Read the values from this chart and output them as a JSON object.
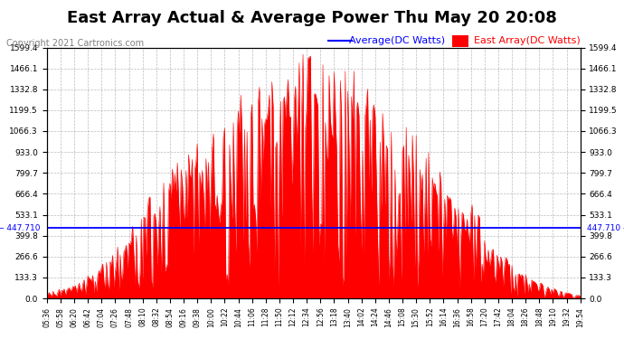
{
  "title": "East Array Actual & Average Power Thu May 20 20:08",
  "copyright": "Copyright 2021 Cartronics.com",
  "legend_avg": "Average(DC Watts)",
  "legend_east": "East Array(DC Watts)",
  "avg_value": 447.71,
  "ymax": 1599.4,
  "ymin": 0.0,
  "yticks": [
    0.0,
    133.3,
    266.6,
    399.8,
    533.1,
    666.4,
    799.7,
    933.0,
    1066.3,
    1199.5,
    1332.8,
    1466.1,
    1599.4
  ],
  "avg_color": "#0000ff",
  "east_color": "#ff0000",
  "bg_color": "#ffffff",
  "title_fontsize": 13,
  "copyright_fontsize": 7,
  "legend_fontsize": 8,
  "xtick_fontsize": 5.5,
  "ytick_fontsize": 6.5,
  "avg_label_fontsize": 6.5,
  "xtick_labels": [
    "05:36",
    "05:58",
    "06:20",
    "06:42",
    "07:04",
    "07:26",
    "07:48",
    "08:10",
    "08:32",
    "08:54",
    "09:16",
    "09:38",
    "10:00",
    "10:22",
    "10:44",
    "11:06",
    "11:28",
    "11:50",
    "12:12",
    "12:34",
    "12:56",
    "13:18",
    "13:40",
    "14:02",
    "14:24",
    "14:46",
    "15:08",
    "15:30",
    "15:52",
    "16:14",
    "16:36",
    "16:58",
    "17:20",
    "17:42",
    "18:04",
    "18:26",
    "18:48",
    "19:10",
    "19:32",
    "19:54"
  ]
}
